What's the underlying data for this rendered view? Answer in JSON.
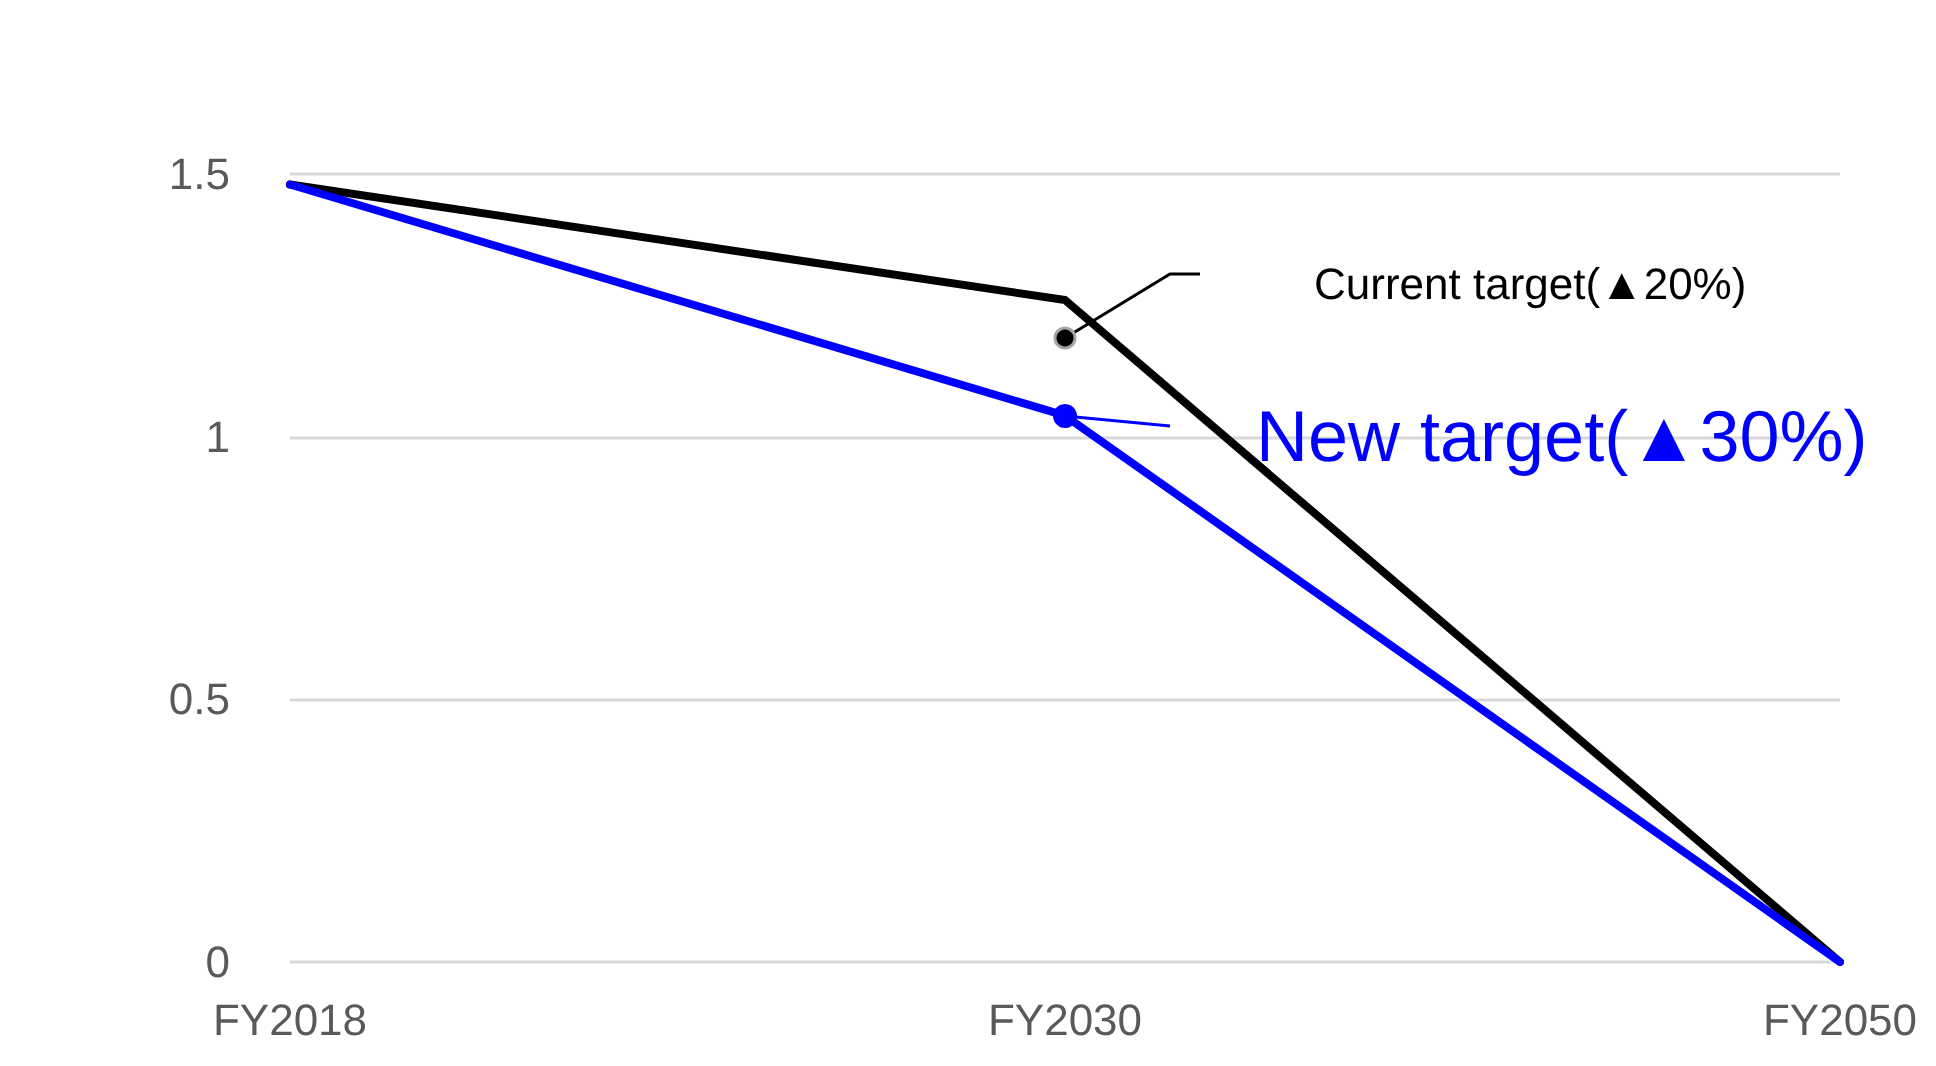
{
  "chart_data": {
    "type": "line",
    "categories": [
      "FY2018",
      "FY2030",
      "FY2050"
    ],
    "series": [
      {
        "color": "#000000",
        "values": [
          1.48,
          1.26,
          0
        ]
      },
      {
        "color": "#0000ff",
        "values": [
          1.48,
          1.04,
          0
        ]
      }
    ],
    "ylim": [
      0,
      1.5
    ],
    "yticks": [
      0,
      0.5,
      1,
      1.5
    ],
    "grid": "y",
    "marker": "none",
    "line_style": "solid",
    "annotations": [
      "Current target(▲20%)",
      "New target(▲30%)"
    ]
  }
}
